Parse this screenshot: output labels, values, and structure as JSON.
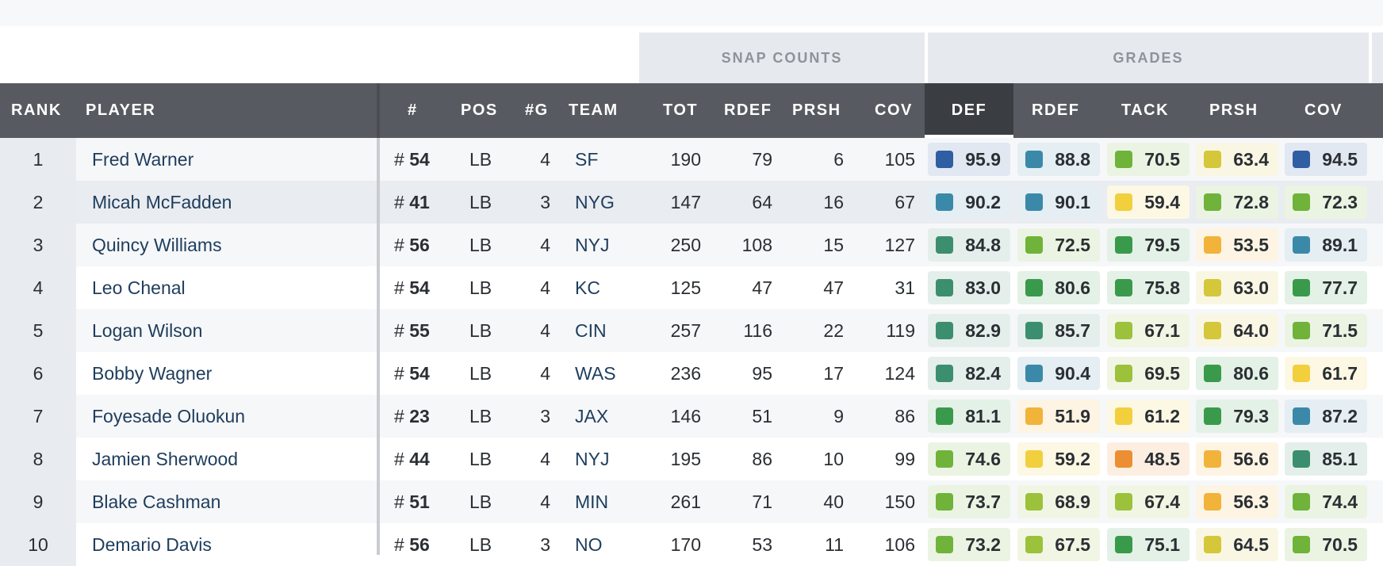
{
  "groups": {
    "snap_counts": "SNAP COUNTS",
    "grades": "GRADES"
  },
  "columns": {
    "rank": "RANK",
    "player": "PLAYER",
    "jersey": "#",
    "pos": "POS",
    "games": "#G",
    "team": "TEAM",
    "snap_tot": "TOT",
    "snap_rdef": "RDEF",
    "snap_prsh": "PRSH",
    "snap_cov": "COV",
    "grade_def": "DEF",
    "grade_rdef": "RDEF",
    "grade_tack": "TACK",
    "grade_prsh": "PRSH",
    "grade_cov": "COV"
  },
  "grade_colors": {
    "elite": "#2f5ea3",
    "high": "#3b89a8",
    "good": "#3c8f6e",
    "above": "#3a9a4b",
    "avg_plus": "#6fb33a",
    "avg": "#9cc13b",
    "below": "#d4c73a",
    "low": "#f2cf3c",
    "poor": "#f1b33a",
    "bad": "#ec8f32"
  },
  "players": [
    {
      "rank": "1",
      "name": "Fred Warner",
      "jersey": "54",
      "pos": "LB",
      "games": "4",
      "team": "SF",
      "snaps": {
        "tot": "190",
        "rdef": "79",
        "prsh": "6",
        "cov": "105"
      },
      "grades": {
        "def": "95.9",
        "rdef": "88.8",
        "tack": "70.5",
        "prsh": "63.4",
        "cov": "94.5"
      }
    },
    {
      "rank": "2",
      "name": "Micah McFadden",
      "jersey": "41",
      "pos": "LB",
      "games": "3",
      "team": "NYG",
      "snaps": {
        "tot": "147",
        "rdef": "64",
        "prsh": "16",
        "cov": "67"
      },
      "grades": {
        "def": "90.2",
        "rdef": "90.1",
        "tack": "59.4",
        "prsh": "72.8",
        "cov": "72.3"
      }
    },
    {
      "rank": "3",
      "name": "Quincy Williams",
      "jersey": "56",
      "pos": "LB",
      "games": "4",
      "team": "NYJ",
      "snaps": {
        "tot": "250",
        "rdef": "108",
        "prsh": "15",
        "cov": "127"
      },
      "grades": {
        "def": "84.8",
        "rdef": "72.5",
        "tack": "79.5",
        "prsh": "53.5",
        "cov": "89.1"
      }
    },
    {
      "rank": "4",
      "name": "Leo Chenal",
      "jersey": "54",
      "pos": "LB",
      "games": "4",
      "team": "KC",
      "snaps": {
        "tot": "125",
        "rdef": "47",
        "prsh": "47",
        "cov": "31"
      },
      "grades": {
        "def": "83.0",
        "rdef": "80.6",
        "tack": "75.8",
        "prsh": "63.0",
        "cov": "77.7"
      }
    },
    {
      "rank": "5",
      "name": "Logan Wilson",
      "jersey": "55",
      "pos": "LB",
      "games": "4",
      "team": "CIN",
      "snaps": {
        "tot": "257",
        "rdef": "116",
        "prsh": "22",
        "cov": "119"
      },
      "grades": {
        "def": "82.9",
        "rdef": "85.7",
        "tack": "67.1",
        "prsh": "64.0",
        "cov": "71.5"
      }
    },
    {
      "rank": "6",
      "name": "Bobby Wagner",
      "jersey": "54",
      "pos": "LB",
      "games": "4",
      "team": "WAS",
      "snaps": {
        "tot": "236",
        "rdef": "95",
        "prsh": "17",
        "cov": "124"
      },
      "grades": {
        "def": "82.4",
        "rdef": "90.4",
        "tack": "69.5",
        "prsh": "80.6",
        "cov": "61.7"
      }
    },
    {
      "rank": "7",
      "name": "Foyesade Oluokun",
      "jersey": "23",
      "pos": "LB",
      "games": "3",
      "team": "JAX",
      "snaps": {
        "tot": "146",
        "rdef": "51",
        "prsh": "9",
        "cov": "86"
      },
      "grades": {
        "def": "81.1",
        "rdef": "51.9",
        "tack": "61.2",
        "prsh": "79.3",
        "cov": "87.2"
      }
    },
    {
      "rank": "8",
      "name": "Jamien Sherwood",
      "jersey": "44",
      "pos": "LB",
      "games": "4",
      "team": "NYJ",
      "snaps": {
        "tot": "195",
        "rdef": "86",
        "prsh": "10",
        "cov": "99"
      },
      "grades": {
        "def": "74.6",
        "rdef": "59.2",
        "tack": "48.5",
        "prsh": "56.6",
        "cov": "85.1"
      }
    },
    {
      "rank": "9",
      "name": "Blake Cashman",
      "jersey": "51",
      "pos": "LB",
      "games": "4",
      "team": "MIN",
      "snaps": {
        "tot": "261",
        "rdef": "71",
        "prsh": "40",
        "cov": "150"
      },
      "grades": {
        "def": "73.7",
        "rdef": "68.9",
        "tack": "67.4",
        "prsh": "56.3",
        "cov": "74.4"
      }
    },
    {
      "rank": "10",
      "name": "Demario Davis",
      "jersey": "56",
      "pos": "LB",
      "games": "3",
      "team": "NO",
      "snaps": {
        "tot": "170",
        "rdef": "53",
        "prsh": "11",
        "cov": "106"
      },
      "grades": {
        "def": "73.2",
        "rdef": "67.5",
        "tack": "75.1",
        "prsh": "64.5",
        "cov": "70.5"
      }
    }
  ]
}
